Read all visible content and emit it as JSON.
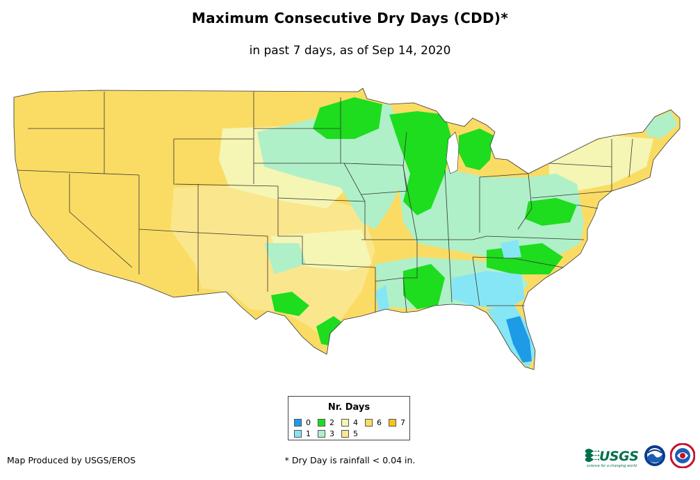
{
  "title": "Maximum Consecutive Dry Days (CDD)*",
  "subtitle": "in past 7 days, as of Sep 14, 2020",
  "legend": {
    "title": "Nr. Days",
    "items": [
      {
        "label": "0",
        "color": "#1e9be6"
      },
      {
        "label": "1",
        "color": "#87e6f5"
      },
      {
        "label": "2",
        "color": "#1edc1e"
      },
      {
        "label": "3",
        "color": "#aff0c8"
      },
      {
        "label": "4",
        "color": "#f5f5b4"
      },
      {
        "label": "5",
        "color": "#fae68c"
      },
      {
        "label": "6",
        "color": "#fadc64"
      },
      {
        "label": "7",
        "color": "#f5c31e"
      }
    ]
  },
  "credit": "Map Produced by USGS/EROS",
  "footnote": "* Dry Day is rainfall < 0.04 in.",
  "logos": {
    "usgs": "USGS",
    "usgs_tagline": "science for a changing world"
  }
}
